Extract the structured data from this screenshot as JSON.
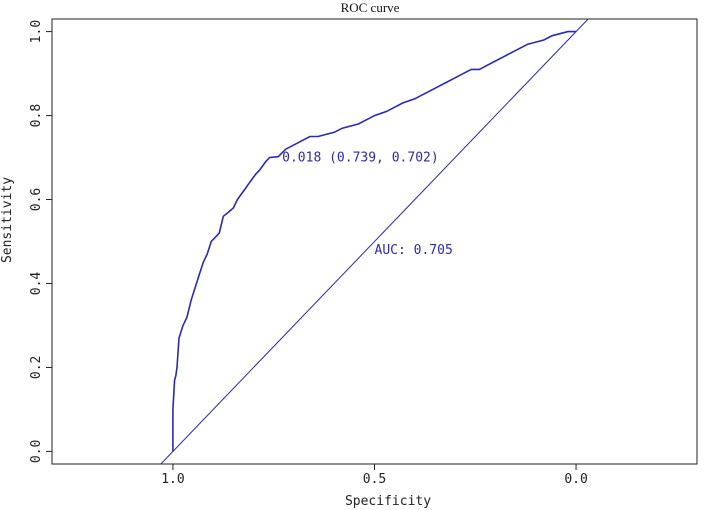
{
  "chart_data": {
    "type": "line",
    "title": "ROC curve",
    "xlabel": "Specificity",
    "ylabel": "Sensitivity",
    "xlim": [
      1.3,
      -0.3
    ],
    "ylim": [
      -0.03,
      1.03
    ],
    "x_ticks": [
      1.0,
      0.5,
      0.0
    ],
    "x_tick_labels": [
      "1.0",
      "0.5",
      "0.0"
    ],
    "y_ticks": [
      0.0,
      0.2,
      0.4,
      0.6,
      0.8,
      1.0
    ],
    "y_tick_labels": [
      "0.0",
      "0.2",
      "0.4",
      "0.6",
      "0.8",
      "1.0"
    ],
    "grid": false,
    "series": [
      {
        "x": [
          1.0,
          1.0,
          0.996,
          0.993,
          0.99,
          0.985,
          0.975,
          0.965,
          0.955,
          0.945,
          0.935,
          0.925,
          0.915,
          0.905,
          0.895,
          0.885,
          0.875,
          0.862,
          0.85,
          0.84,
          0.825,
          0.81,
          0.795,
          0.785,
          0.77,
          0.76,
          0.739,
          0.72,
          0.7,
          0.68,
          0.66,
          0.64,
          0.62,
          0.6,
          0.58,
          0.56,
          0.54,
          0.52,
          0.5,
          0.47,
          0.45,
          0.43,
          0.4,
          0.38,
          0.36,
          0.34,
          0.32,
          0.3,
          0.28,
          0.26,
          0.24,
          0.22,
          0.2,
          0.18,
          0.16,
          0.14,
          0.12,
          0.1,
          0.08,
          0.06,
          0.04,
          0.02,
          0.0
        ],
        "y": [
          0.0,
          0.1,
          0.17,
          0.18,
          0.2,
          0.27,
          0.3,
          0.32,
          0.36,
          0.39,
          0.42,
          0.45,
          0.47,
          0.5,
          0.51,
          0.52,
          0.56,
          0.57,
          0.58,
          0.6,
          0.62,
          0.64,
          0.66,
          0.67,
          0.69,
          0.7,
          0.702,
          0.72,
          0.73,
          0.74,
          0.75,
          0.75,
          0.755,
          0.76,
          0.77,
          0.775,
          0.78,
          0.79,
          0.8,
          0.81,
          0.82,
          0.83,
          0.84,
          0.85,
          0.86,
          0.87,
          0.88,
          0.89,
          0.9,
          0.91,
          0.91,
          0.92,
          0.93,
          0.94,
          0.95,
          0.96,
          0.97,
          0.975,
          0.98,
          0.99,
          0.995,
          1.0,
          1.0
        ]
      }
    ],
    "reference_line": {
      "from": [
        1.0,
        0.0
      ],
      "to": [
        0.0,
        1.0
      ]
    },
    "annotations": [
      {
        "text": "0.018 (0.739, 0.702)",
        "x": 0.739,
        "y": 0.702
      },
      {
        "text": "AUC: 0.705"
      }
    ],
    "colors": {
      "curve": "#2a2ab0",
      "reference": "#2a2ab0",
      "axis": "#222222"
    }
  }
}
